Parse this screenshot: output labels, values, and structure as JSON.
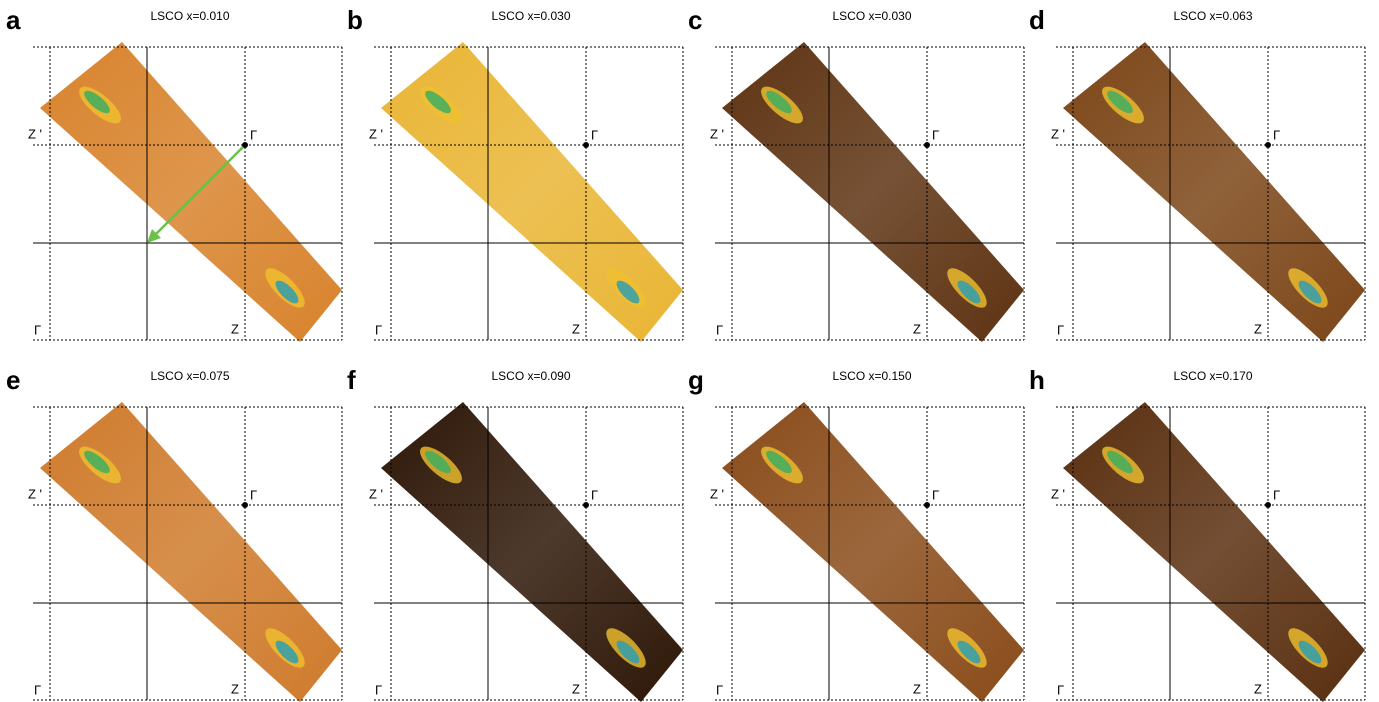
{
  "panels": [
    {
      "letter": "a",
      "title": "LSCO x=0.010",
      "labels": {
        "zp": "Z '",
        "g1": "Γ",
        "g2": "Γ",
        "z": "Z"
      },
      "color": "#d8832c"
    },
    {
      "letter": "b",
      "title": "LSCO x=0.030",
      "labels": {
        "zp": "Z '",
        "g1": "Γ",
        "g2": "Γ",
        "z": "Z"
      },
      "color": "#e9b534"
    },
    {
      "letter": "c",
      "title": "LSCO x=0.030",
      "labels": {
        "zp": "Z '",
        "g1": "Γ",
        "g2": "Γ",
        "z": "Z"
      },
      "color": "#5e3312"
    },
    {
      "letter": "d",
      "title": "LSCO x=0.063",
      "labels": {
        "zp": "Z '",
        "g1": "Γ",
        "g2": "Γ",
        "z": "Z"
      },
      "color": "#7c4618"
    },
    {
      "letter": "e",
      "title": "LSCO x=0.075",
      "labels": {
        "zp": "Z '",
        "g1": "Γ",
        "g2": "Γ",
        "z": "Z"
      },
      "color": "#cf7b2c"
    },
    {
      "letter": "f",
      "title": "LSCO x=0.090",
      "labels": {
        "zp": "Z '",
        "g1": "Γ",
        "g2": "Γ",
        "z": "Z"
      },
      "color": "#2e1707"
    },
    {
      "letter": "g",
      "title": "LSCO x=0.150",
      "labels": {
        "zp": "Z '",
        "g1": "Γ",
        "g2": "Γ",
        "z": "Z"
      },
      "color": "#8a4c1a"
    },
    {
      "letter": "h",
      "title": "LSCO x=0.170",
      "labels": {
        "zp": "Z '",
        "g1": "Γ",
        "g2": "Γ",
        "z": "Z"
      },
      "color": "#5a2f10"
    }
  ]
}
